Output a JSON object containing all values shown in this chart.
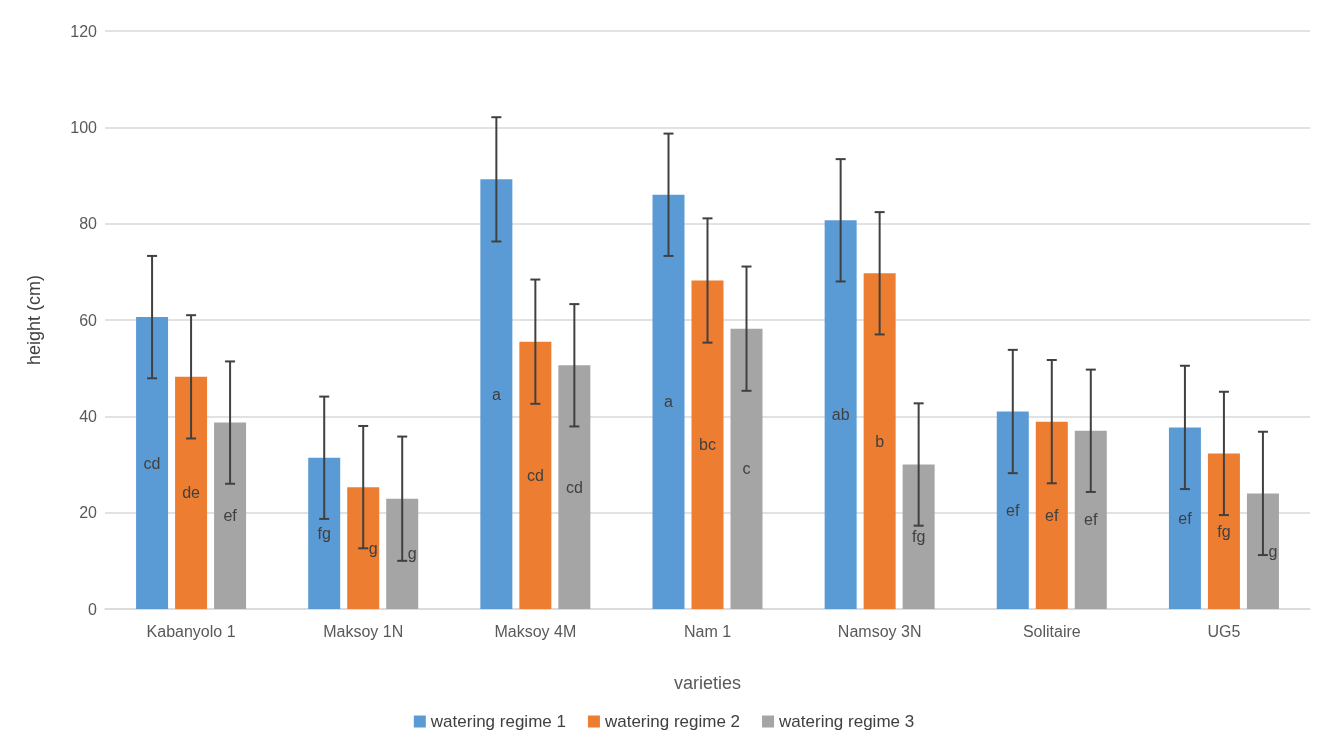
{
  "chart_data": {
    "type": "bar",
    "xlabel": "varieties",
    "ylabel": "height (cm)",
    "categories": [
      "Kabanyolo 1",
      "Maksoy 1N",
      "Maksoy 4M",
      "Nam 1",
      "Namsoy 3N",
      "Solitaire",
      "UG5"
    ],
    "series": [
      {
        "name": "watering regime 1",
        "color": "#5b9bd5",
        "values": [
          60.6,
          31.4,
          89.2,
          86,
          80.7,
          41,
          37.7
        ],
        "errors": [
          12.7,
          12.7,
          12.9,
          12.7,
          12.7,
          12.8,
          12.8
        ],
        "value_labels": [
          "cd",
          "fg",
          "a",
          "a",
          "ab",
          "ef",
          "ef"
        ]
      },
      {
        "name": "watering regime 2",
        "color": "#ed7d31",
        "values": [
          48.2,
          25.3,
          55.5,
          68.2,
          69.7,
          38.9,
          32.3
        ],
        "errors": [
          12.8,
          12.7,
          12.9,
          12.9,
          12.7,
          12.8,
          12.8
        ],
        "value_labels": [
          "de",
          "g",
          "cd",
          "bc",
          "b",
          "ef",
          "fg"
        ]
      },
      {
        "name": "watering regime 3",
        "color": "#a5a5a5",
        "values": [
          38.7,
          22.9,
          50.6,
          58.2,
          30,
          37,
          24
        ],
        "errors": [
          12.7,
          12.9,
          12.7,
          12.9,
          12.7,
          12.7,
          12.8
        ],
        "value_labels": [
          "ef",
          "g",
          "cd",
          "c",
          "fg",
          "ef",
          "g"
        ]
      }
    ],
    "ylim": [
      0,
      120
    ],
    "yticks": [
      0,
      20,
      40,
      60,
      80,
      100,
      120
    ],
    "grid": "y",
    "legend": "bottom"
  }
}
